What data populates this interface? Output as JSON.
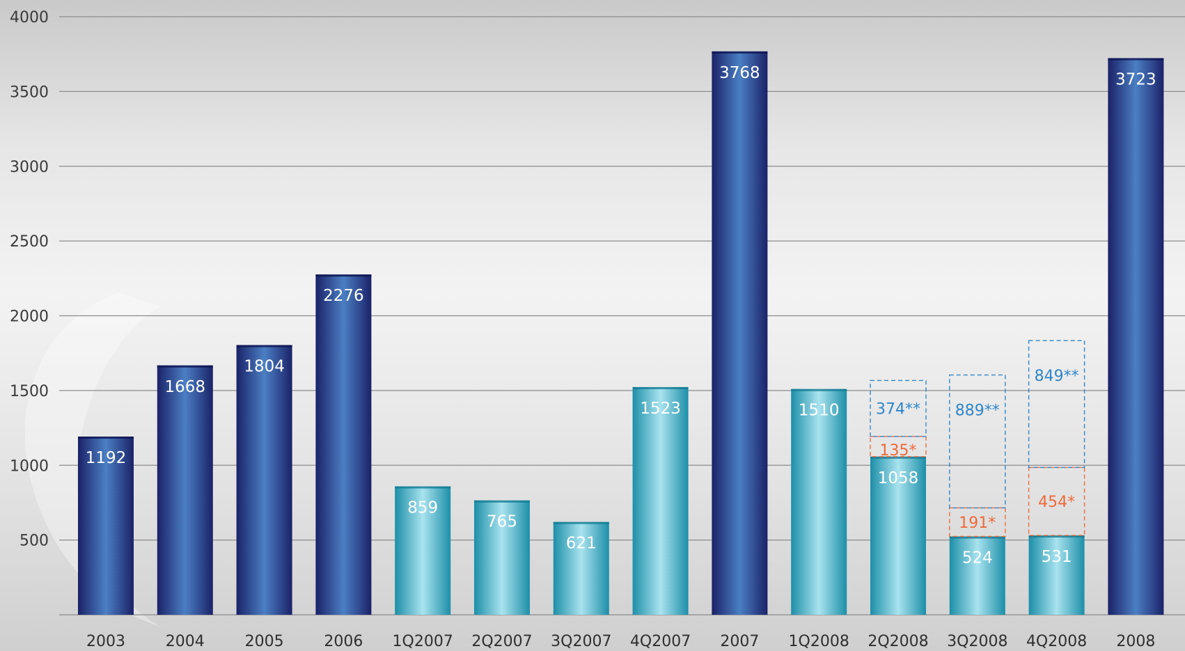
{
  "chart_data": {
    "type": "bar",
    "title": "",
    "xlabel": "",
    "ylabel": "",
    "ylim": [
      0,
      4000
    ],
    "yticks": [
      500,
      1000,
      1500,
      2000,
      2500,
      3000,
      3500,
      4000
    ],
    "grid": true,
    "categories": [
      "2003",
      "2004",
      "2005",
      "2006",
      "1Q2007",
      "2Q2007",
      "3Q2007",
      "4Q2007",
      "2007",
      "1Q2008",
      "2Q2008",
      "3Q2008",
      "4Q2008",
      "2008"
    ],
    "values": [
      1192,
      1668,
      1804,
      2276,
      859,
      765,
      621,
      1523,
      3768,
      1510,
      1058,
      524,
      531,
      3723
    ],
    "bar_kind": [
      "annual",
      "annual",
      "annual",
      "annual",
      "quarter",
      "quarter",
      "quarter",
      "quarter",
      "annual",
      "quarter",
      "quarter",
      "quarter",
      "quarter",
      "annual"
    ],
    "stacked_outlines": [
      {
        "category": "2Q2008",
        "segments": [
          {
            "value": 135,
            "label": "135*",
            "color": "#ef6a3a"
          },
          {
            "value": 374,
            "label": "374**",
            "color": "#2f86c9"
          }
        ]
      },
      {
        "category": "3Q2008",
        "segments": [
          {
            "value": 191,
            "label": "191*",
            "color": "#ef6a3a"
          },
          {
            "value": 889,
            "label": "889**",
            "color": "#2f86c9"
          }
        ]
      },
      {
        "category": "4Q2008",
        "segments": [
          {
            "value": 454,
            "label": "454*",
            "color": "#ef6a3a"
          },
          {
            "value": 849,
            "label": "849**",
            "color": "#2f86c9"
          }
        ]
      }
    ],
    "colors": {
      "annual_dark": "#1b2268",
      "annual_light": "#4b7fc4",
      "quarter_dark": "#1d8fa8",
      "quarter_light": "#a9e3ef",
      "grid": "#8c8c8c"
    }
  }
}
